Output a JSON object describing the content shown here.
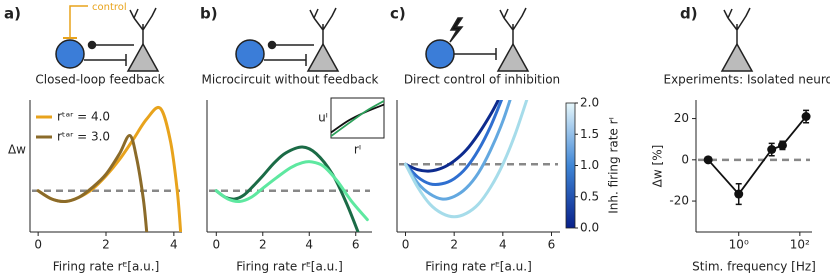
{
  "chart_data": [
    {
      "type": "line",
      "panel": "a)",
      "diagram_label": "control",
      "title": "Closed-loop feedback",
      "xlabel": "Firing rate rᴱ[a.u.]",
      "ylabel": "Δw",
      "xlim": [
        -0.24,
        4.24
      ],
      "ylim": [
        -0.5,
        1.1
      ],
      "xticks": [
        0,
        2,
        4
      ],
      "reference_line": 0,
      "reference_color": "#888888",
      "legend": "upper left",
      "series": [
        {
          "name": "rᵗᵃʳ = 4.0",
          "color": "#e8a31c",
          "x": [
            0,
            0.4,
            0.8,
            1.2,
            1.6,
            2.0,
            2.4,
            2.8,
            3.2,
            3.6,
            3.9,
            4.1,
            4.2
          ],
          "values": [
            0,
            -0.1,
            -0.13,
            -0.08,
            0.02,
            0.18,
            0.38,
            0.62,
            0.87,
            1.0,
            0.6,
            0.0,
            -0.5
          ]
        },
        {
          "name": "rᵗᵃʳ = 3.0",
          "color": "#8b6b2a",
          "x": [
            0,
            0.4,
            0.8,
            1.2,
            1.6,
            2.0,
            2.4,
            2.7,
            2.9,
            3.1,
            3.2
          ],
          "values": [
            0,
            -0.1,
            -0.13,
            -0.08,
            0.04,
            0.2,
            0.45,
            0.67,
            0.4,
            -0.1,
            -0.5
          ]
        }
      ]
    },
    {
      "type": "line",
      "panel": "b)",
      "title": "Microcircuit without feedback",
      "xlabel": "Firing rate rᴱ[a.u.]",
      "xlim": [
        -0.4,
        6.7
      ],
      "ylim": [
        -0.5,
        1.1
      ],
      "xticks": [
        0,
        2,
        4,
        6
      ],
      "reference_line": 0,
      "reference_color": "#888888",
      "series": [
        {
          "color": "#1b6b46",
          "x": [
            0,
            0.4,
            0.8,
            1.2,
            1.6,
            2.0,
            2.5,
            3.0,
            3.7,
            4.3,
            5.0,
            5.6,
            6.1
          ],
          "values": [
            0,
            -0.08,
            -0.1,
            -0.05,
            0.06,
            0.18,
            0.34,
            0.46,
            0.53,
            0.45,
            0.2,
            -0.15,
            -0.5
          ]
        },
        {
          "color": "#5ee8a0",
          "x": [
            0,
            0.5,
            1.0,
            1.5,
            2.0,
            2.6,
            3.2,
            3.7,
            4.1,
            4.6,
            5.2,
            5.8,
            6.5
          ],
          "values": [
            0,
            -0.1,
            -0.13,
            -0.08,
            0.03,
            0.16,
            0.28,
            0.34,
            0.35,
            0.3,
            0.12,
            -0.12,
            -0.35
          ]
        }
      ],
      "inset": {
        "xlabel": "rᴵ",
        "ylabel": "uᴵ",
        "xlim": [
          0,
          1
        ],
        "ylim": [
          0,
          1.1
        ],
        "series": [
          {
            "color": "#111111",
            "x": [
              0,
              0.33,
              0.66,
              1
            ],
            "values": [
              0.15,
              0.48,
              0.72,
              0.92
            ]
          },
          {
            "color": "#2ca05a",
            "x": [
              0,
              0.33,
              0.66,
              1
            ],
            "values": [
              0.05,
              0.4,
              0.74,
              1.02
            ]
          }
        ]
      }
    },
    {
      "type": "line",
      "panel": "c)",
      "title": "Direct control of inhibition",
      "xlabel": "Firing rate rᴱ[a.u.]",
      "xlim": [
        -0.35,
        6.35
      ],
      "ylim": [
        -0.8,
        0.76
      ],
      "xticks": [
        0,
        2,
        4,
        6
      ],
      "reference_line": 0,
      "reference_color": "#888888",
      "series": [
        {
          "color": "#0d2b8e",
          "x": [
            0,
            0.5,
            1,
            1.5,
            2,
            2.5,
            3,
            3.5,
            3.8
          ],
          "values": [
            0,
            -0.064,
            -0.079,
            -0.044,
            0.04,
            0.17,
            0.36,
            0.59,
            0.75
          ]
        },
        {
          "color": "#2f6fd0",
          "x": [
            0,
            0.5,
            1,
            1.5,
            2,
            2.5,
            3,
            3.5,
            4
          ],
          "values": [
            0,
            -0.15,
            -0.23,
            -0.23,
            -0.17,
            -0.04,
            0.17,
            0.45,
            0.8
          ]
        },
        {
          "color": "#63a8e0",
          "x": [
            0,
            0.5,
            1,
            1.5,
            2,
            2.5,
            3,
            3.5,
            4,
            4.5
          ],
          "values": [
            0,
            -0.22,
            -0.35,
            -0.41,
            -0.38,
            -0.28,
            -0.1,
            0.17,
            0.51,
            0.94
          ]
        },
        {
          "color": "#a6dcea",
          "x": [
            0,
            0.5,
            1,
            1.5,
            2,
            2.5,
            3,
            3.5,
            4,
            4.5,
            5
          ],
          "values": [
            0,
            -0.27,
            -0.47,
            -0.58,
            -0.62,
            -0.58,
            -0.47,
            -0.27,
            0,
            0.35,
            0.775
          ]
        }
      ],
      "colorbar": {
        "label": "Inh. firing rate rᴵ",
        "lim": [
          0,
          2
        ],
        "colors": [
          "#08208a",
          "#3f86d6",
          "#e6f7fb"
        ],
        "ticks": [
          {
            "value": 0,
            "label": "0.0"
          },
          {
            "value": 0.5,
            "label": "0.5"
          },
          {
            "value": 1,
            "label": "1.0"
          },
          {
            "value": 1.5,
            "label": "1.5"
          },
          {
            "value": 2,
            "label": "2.0"
          }
        ]
      }
    },
    {
      "type": "errorline",
      "panel": "d)",
      "title": "Experiments: Isolated neuron",
      "xlabel": "Stim. frequency [Hz]",
      "ylabel": "Δw [%]",
      "xlog": true,
      "xlim": [
        0.04,
        250
      ],
      "ylim": [
        -35,
        29
      ],
      "xticks": [
        {
          "value": 1,
          "label": "10⁰"
        },
        {
          "value": 100,
          "label": "10²"
        }
      ],
      "yticks": [
        -20,
        0,
        20
      ],
      "reference_line": 0,
      "reference_color": "#888888",
      "series": [
        {
          "color": "#111111",
          "x": [
            0.1,
            1,
            12,
            27,
            160
          ],
          "values": [
            0,
            -16.6,
            5,
            7,
            21
          ],
          "errors": [
            0,
            5,
            3,
            2,
            3
          ]
        }
      ]
    }
  ]
}
